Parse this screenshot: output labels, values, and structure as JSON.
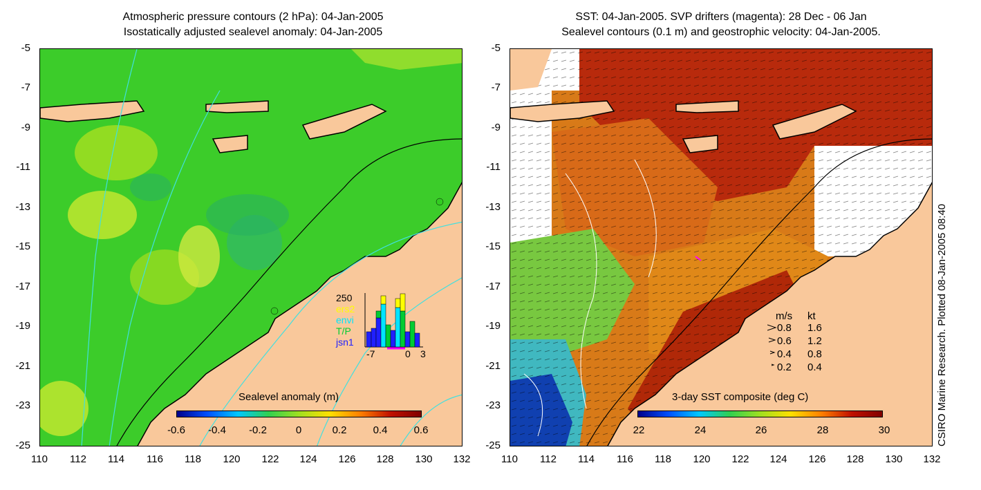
{
  "left_panel": {
    "title_line1": "Atmospheric pressure contours (2 hPa): 04-Jan-2005",
    "title_line2": "Isostatically adjusted sealevel anomaly: 04-Jan-2005",
    "colorbar_label": "Sealevel anomaly (m)",
    "colorbar_ticks": [
      "-0.6",
      "-0.4",
      "-0.2",
      "0",
      "0.2",
      "0.4",
      "0.6"
    ],
    "inset": {
      "ymax_label": "250",
      "series_labels": [
        "ers2",
        "envi",
        "T/P",
        "jsn1"
      ],
      "series_colors": [
        "#ffff00",
        "#00e5ff",
        "#00cc33",
        "#2020ff"
      ],
      "x_labels": [
        "-7",
        "0",
        "3"
      ]
    }
  },
  "right_panel": {
    "title_line1": "SST: 04-Jan-2005. SVP drifters (magenta): 28 Dec - 06 Jan",
    "title_line2": "Sealevel contours (0.1 m) and geostrophic velocity: 04-Jan-2005.",
    "colorbar_label": "3-day SST composite (deg C)",
    "colorbar_ticks": [
      "22",
      "24",
      "26",
      "28",
      "30"
    ],
    "velocity_legend": {
      "header_ms": "m/s",
      "header_kt": "kt",
      "rows": [
        {
          "ms": "0.8",
          "kt": "1.6"
        },
        {
          "ms": "0.6",
          "kt": "1.2"
        },
        {
          "ms": "0.4",
          "kt": "0.8"
        },
        {
          "ms": "0.2",
          "kt": "0.4"
        }
      ]
    }
  },
  "axes": {
    "y_ticks": [
      "-5",
      "-7",
      "-9",
      "-11",
      "-13",
      "-15",
      "-17",
      "-19",
      "-21",
      "-23",
      "-25"
    ],
    "x_ticks": [
      "110",
      "112",
      "114",
      "116",
      "118",
      "120",
      "122",
      "124",
      "126",
      "128",
      "130",
      "132"
    ]
  },
  "credit": "CSIRO Marine Research. Plotted 08-Jan-2005 08:40",
  "colors": {
    "land": "#f9c89b",
    "ocean_green": "#33cc22",
    "sst_red": "#c8300a",
    "contour_cyan": "#40e0e0"
  }
}
